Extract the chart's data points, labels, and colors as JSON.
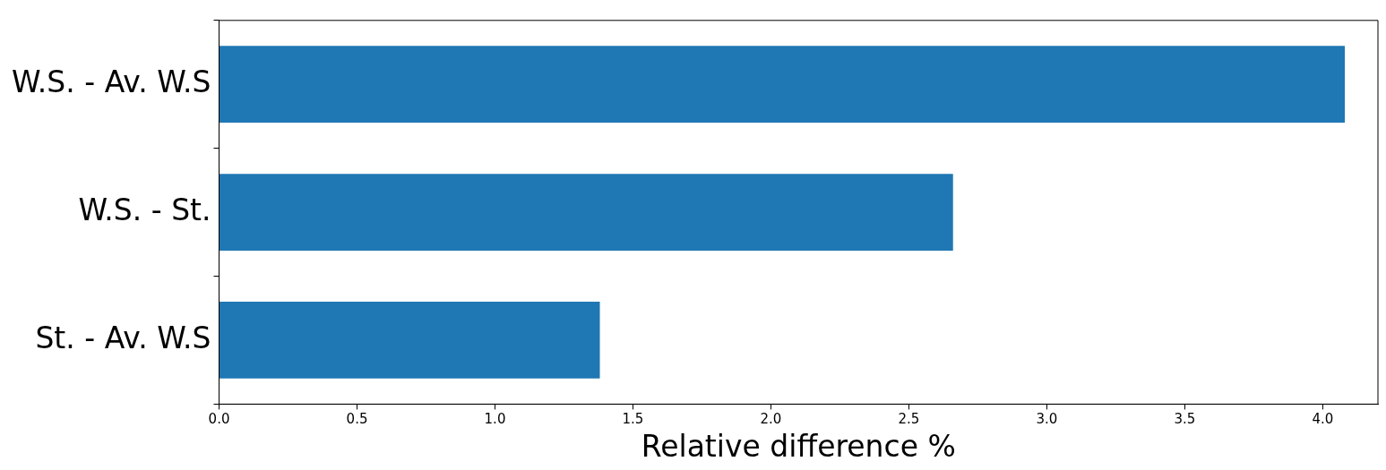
{
  "chart_data": {
    "type": "bar",
    "orientation": "horizontal",
    "categories": [
      "W.S. - Av. W.S",
      "W.S. - St.",
      "St. - Av. W.S"
    ],
    "values": [
      4.08,
      2.66,
      1.38
    ],
    "color": "#1f77b4",
    "xlabel": "Relative difference %",
    "xlim": [
      0,
      4.2
    ],
    "xticks": [
      {
        "value": 0,
        "label": "0.0"
      },
      {
        "value": 0.5,
        "label": "0.5"
      },
      {
        "value": 1,
        "label": "1.0"
      },
      {
        "value": 1.5,
        "label": "1.5"
      },
      {
        "value": 2,
        "label": "2.0"
      },
      {
        "value": 2.5,
        "label": "2.5"
      },
      {
        "value": 3,
        "label": "3.0"
      },
      {
        "value": 3.5,
        "label": "3.5"
      },
      {
        "value": 4,
        "label": "4.0"
      }
    ],
    "grid": false,
    "legend": false
  }
}
